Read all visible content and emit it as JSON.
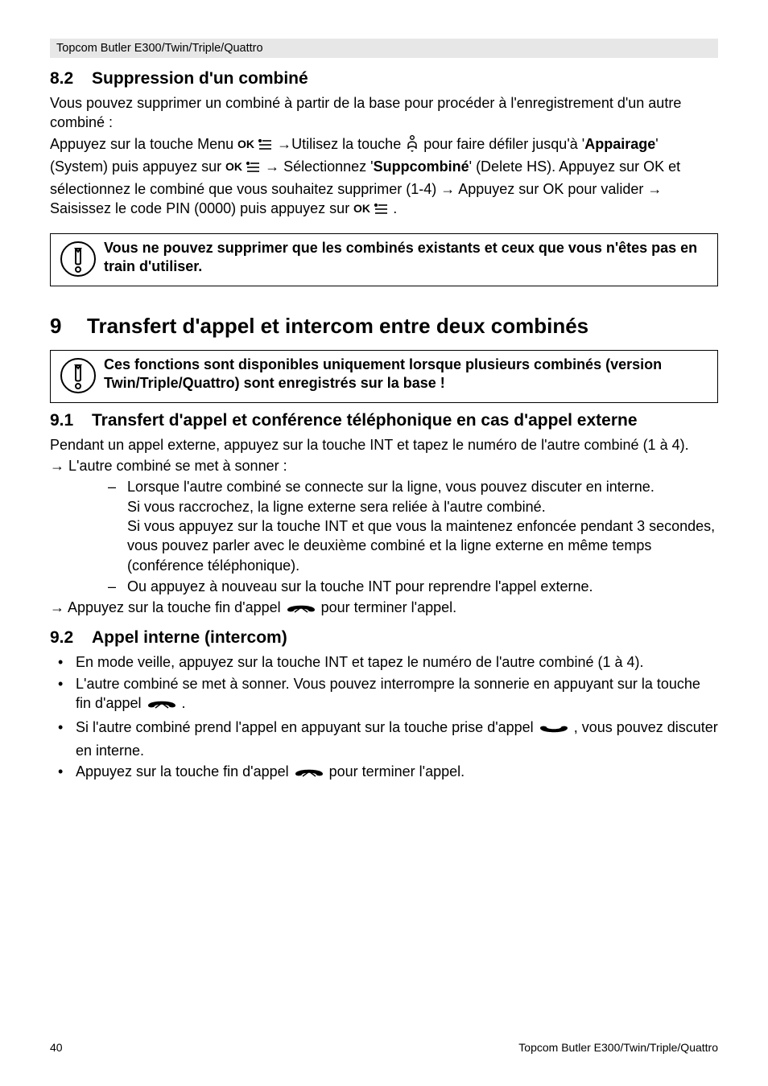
{
  "header": {
    "product": "Topcom Butler E300/Twin/Triple/Quattro"
  },
  "sec82": {
    "num": "8.2",
    "title": "Suppression d'un combiné",
    "p1": "Vous pouvez supprimer un combiné à partir de la base pour procéder à l'enregistrement d'un autre combiné :",
    "p2a": "Appuyez sur la touche Menu ",
    "p2b": " →Utilisez la touche ",
    "p2c": " pour faire défiler jusqu'à '",
    "p2_appair": "Appairage",
    "p2d": "' (System) puis appuyez sur ",
    "p2e": " → Sélectionnez '",
    "p2_supp": "Suppcombiné",
    "p2f": "' (Delete HS). Appuyez sur OK et sélectionnez le combiné que vous souhaitez supprimer (1-4) → Appuyez sur OK pour valider → Saisissez le code PIN (0000) puis appuyez sur ",
    "p2g": " .",
    "note": "Vous ne pouvez supprimer que les combinés existants et ceux que vous n'êtes pas en train d'utiliser."
  },
  "sec9": {
    "num": "9",
    "title": "Transfert d'appel et intercom entre deux combinés",
    "note": "Ces fonctions sont disponibles uniquement lorsque plusieurs combinés (version Twin/Triple/Quattro) sont enregistrés sur la base !"
  },
  "sec91": {
    "num": "9.1",
    "title": "Transfert d'appel et conférence téléphonique en cas d'appel externe",
    "p1": "Pendant un appel externe, appuyez sur la touche INT et tapez le numéro de l'autre combiné (1 à 4).",
    "p2": "→ L'autre combiné se met à sonner :",
    "li1a": "Lorsque l'autre combiné se connecte sur la ligne, vous pouvez discuter en interne.",
    "li1b": "Si vous raccrochez, la ligne externe sera reliée à l'autre combiné.",
    "li1c": "Si vous appuyez sur la touche INT et que vous la maintenez enfoncée pendant 3 secondes, vous pouvez parler avec le deuxième combiné et la ligne externe en même temps (conférence téléphonique).",
    "li2": "Ou appuyez à nouveau sur la touche INT pour reprendre l'appel externe.",
    "p3a": "→ Appuyez sur la touche fin d'appel ",
    "p3b": " pour terminer l'appel."
  },
  "sec92": {
    "num": "9.2",
    "title": "Appel interne (intercom)",
    "b1": "En mode veille, appuyez sur la touche INT et tapez le numéro de l'autre combiné (1 à 4).",
    "b2a": "L'autre combiné se met à sonner. Vous pouvez interrompre la sonnerie en appuyant sur la touche fin d'appel ",
    "b2b": " .",
    "b3a": "Si l'autre combiné prend l'appel en appuyant sur la touche prise d'appel ",
    "b3b": " , vous pouvez discuter en interne.",
    "b4a": "Appuyez sur la touche fin d'appel ",
    "b4b": " pour terminer l'appel."
  },
  "footer": {
    "page": "40",
    "product": "Topcom Butler E300/Twin/Triple/Quattro"
  },
  "icons": {
    "ok_menu_svg": "<svg width='44' height='20' viewBox='0 0 44 20'><text x='0' y='15' font-family='Arial' font-size='14' font-weight='bold'>OK</text><g stroke='#000' stroke-width='1.6' fill='none'><circle cx='28' cy='6' r='1.3' fill='#000'/><line x1='31' y1='6' x2='42' y2='6'/><line x1='27' y1='11' x2='42' y2='11'/><line x1='27' y1='16' x2='42' y2='16'/></g></svg>",
    "scroll_svg": "<svg width='18' height='22' viewBox='0 0 18 22'><g stroke='#000' stroke-width='1.4' fill='none'><circle cx='9' cy='4' r='2.3'/><path d='M4 13 C4 8 14 8 14 13 L14 18 C14 14 4 14 4 18 Z'/><path d='M7 20 L9 22 L11 20' fill='#000' stroke='none'/></g></svg>",
    "hangup_svg": "<svg width='40' height='16' viewBox='0 0 40 16'><path d='M3 9 C 3 2, 37 2, 37 9 C 37 12, 30 12, 29 10 C 28 7, 12 7, 11 10 C 10 12, 3 12, 3 9 Z' fill='#000'/><path d='M12 12 L20 6 L28 12' stroke='#000' stroke-width='1.5' fill='none'/></svg>",
    "pickup_svg": "<svg width='40' height='16' viewBox='0 0 40 16'><path d='M3 7 C 3 14, 37 14, 37 7 C 37 4, 30 4, 29 6 C 28 9, 12 9, 11 6 C 10 4, 3 4, 3 7 Z' fill='#000'/></svg>",
    "info_svg": "<svg width='46' height='46' viewBox='0 0 46 46'><ellipse cx='23' cy='23' rx='21' ry='21' fill='none' stroke='#000' stroke-width='2'/><path d='M20 10 L26 10 L26 28 C26 30 20 30 20 28 Z' fill='none' stroke='#000' stroke-width='2'/><path d='M20 10 L26 10 L23 14 Z' fill='none' stroke='#000' stroke-width='2'/><circle cx='23' cy='36' r='3' fill='none' stroke='#000' stroke-width='2'/></svg>"
  }
}
